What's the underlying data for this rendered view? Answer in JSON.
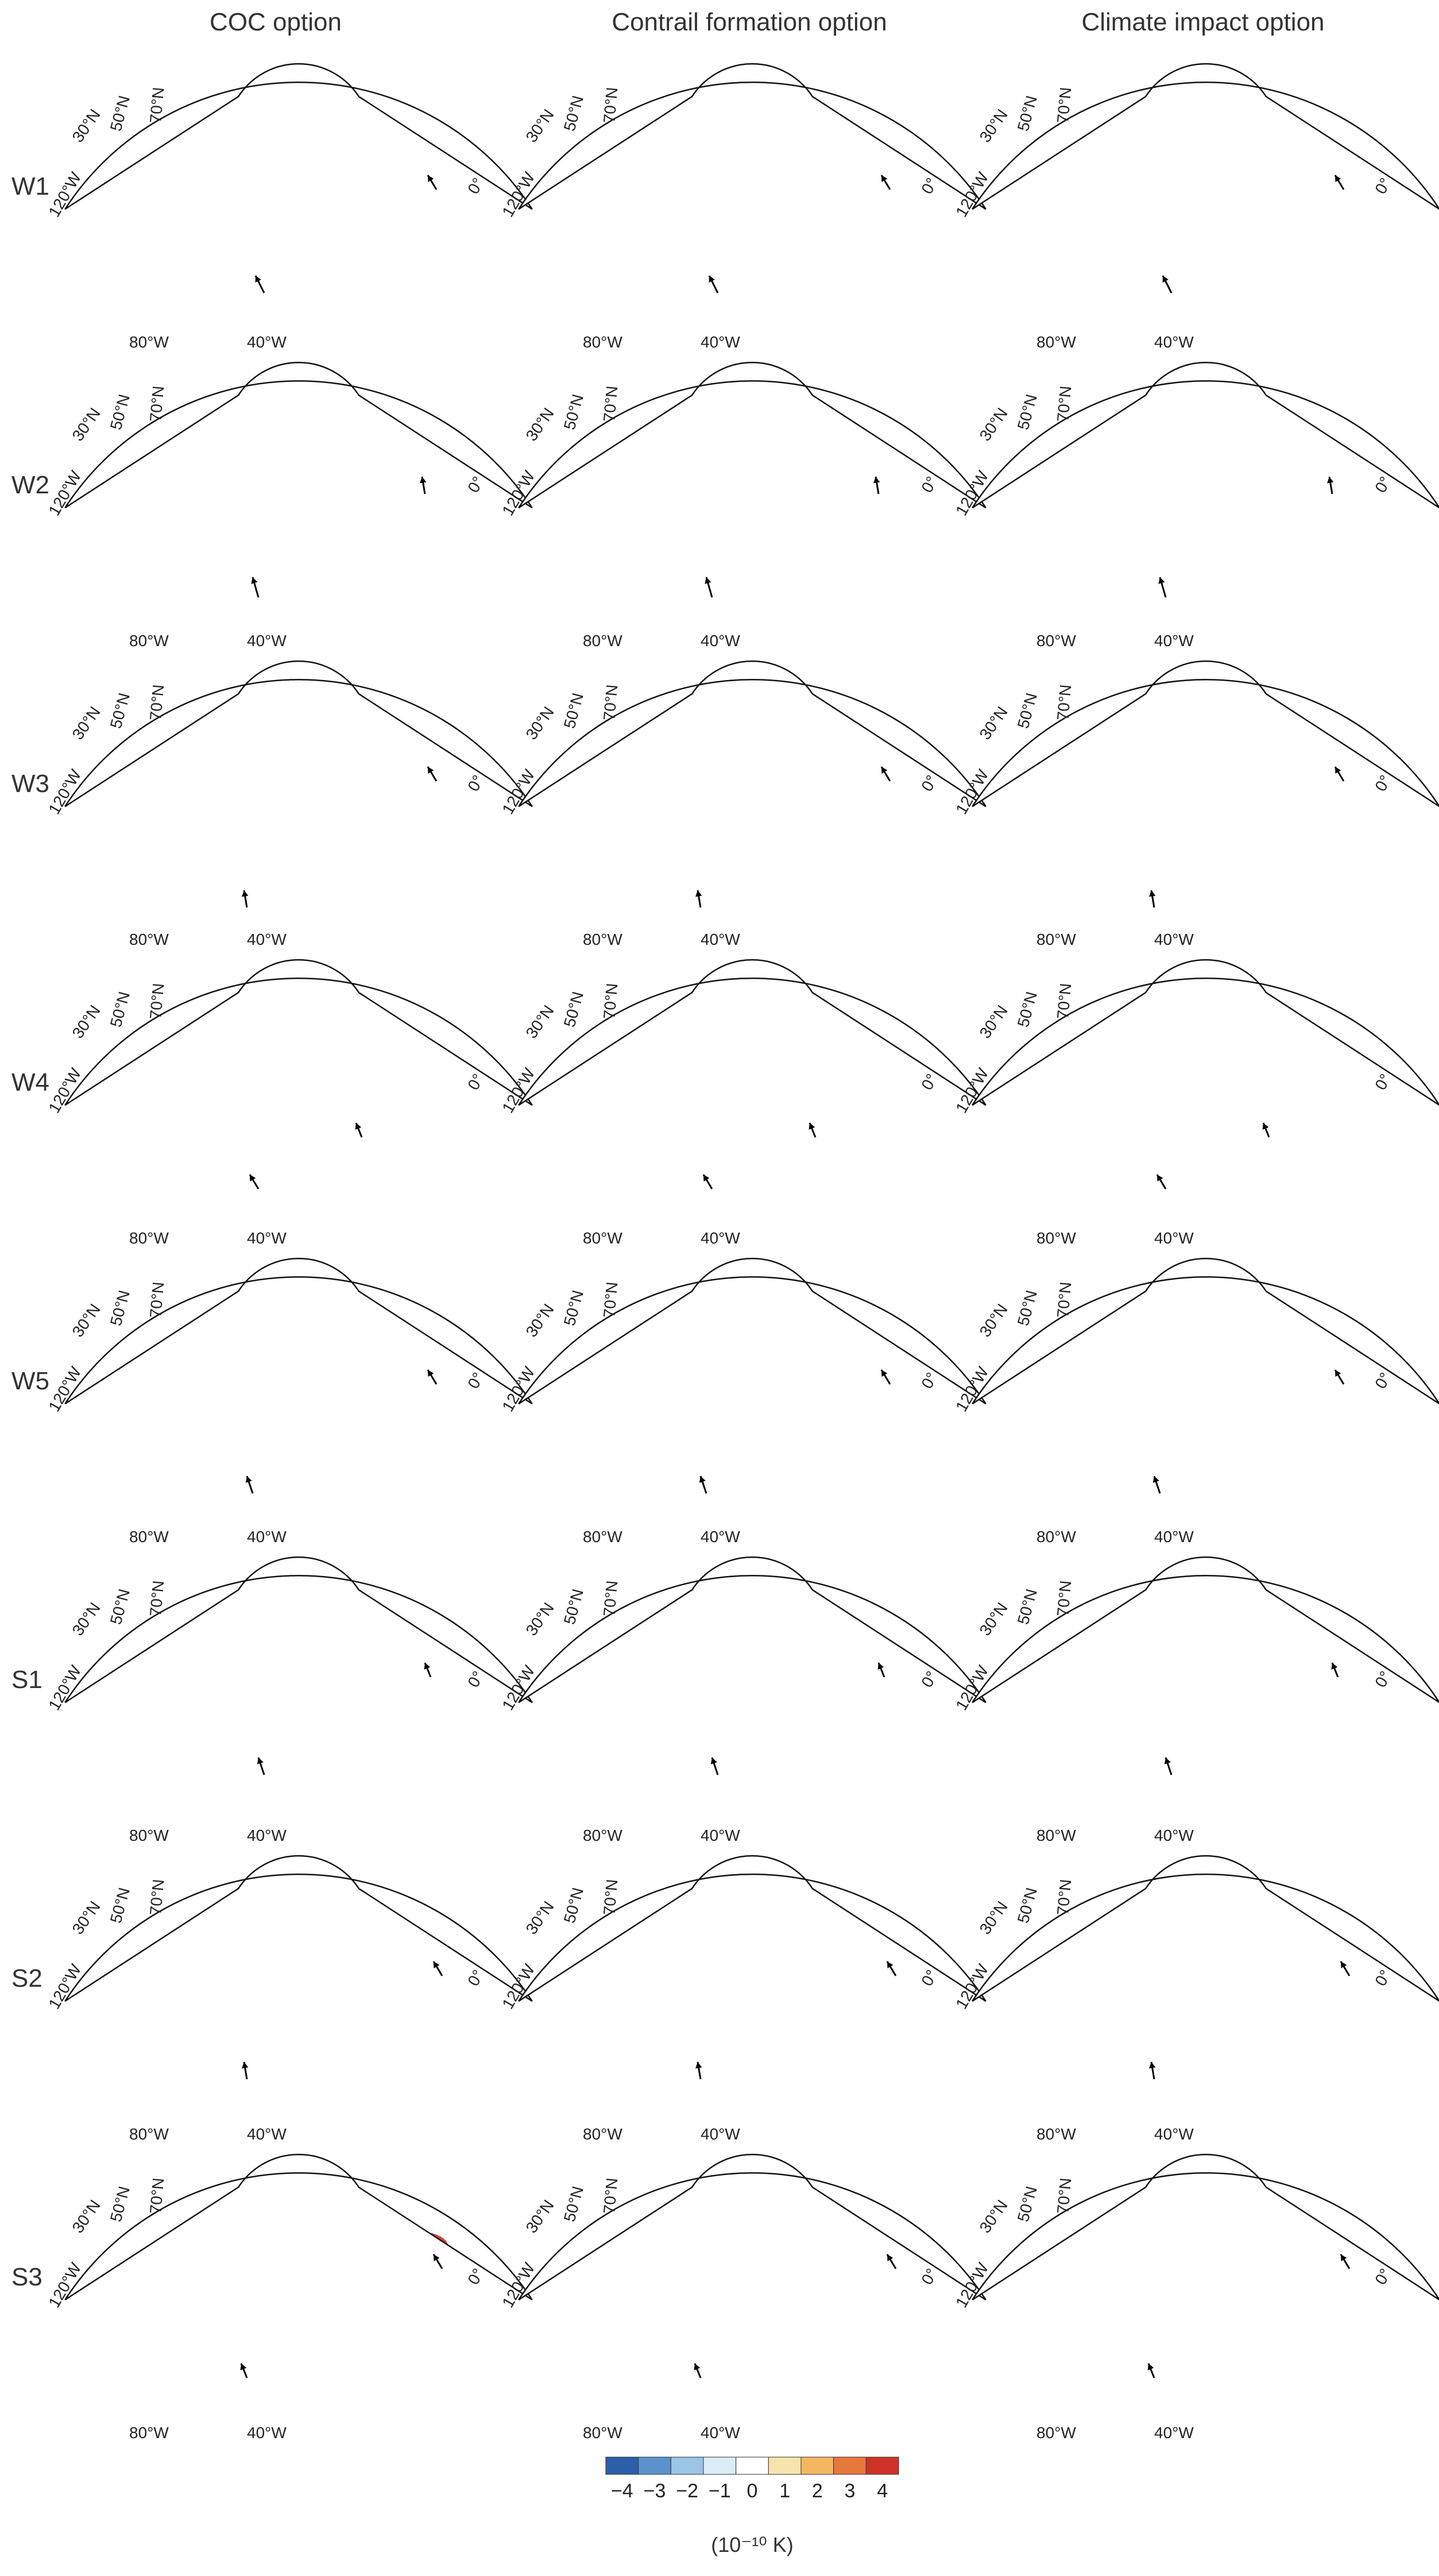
{
  "figure": {
    "columns": [
      "COC option",
      "Contrail formation option",
      "Climate impact option"
    ],
    "rows": [
      "W1",
      "W2",
      "W3",
      "W4",
      "W5",
      "S1",
      "S2",
      "S3"
    ],
    "geo_labels": {
      "lat": [
        "30°N",
        "50°N",
        "70°N"
      ],
      "lon": [
        "120°W",
        "80°W",
        "40°W",
        "0°"
      ]
    },
    "colorbar": {
      "ticks": [
        "−4",
        "−3",
        "−2",
        "−1",
        "0",
        "1",
        "2",
        "3",
        "4"
      ],
      "unit": "(10⁻¹⁰ K)",
      "colors": [
        "#2b5fa8",
        "#5b92cc",
        "#9cc4e4",
        "#dcecf6",
        "#ffffff",
        "#f7e4ad",
        "#f4b760",
        "#e8773c",
        "#cf3228"
      ]
    },
    "map_colors": {
      "base": "#f7e4ad",
      "warm_mid": "#f4b760",
      "warm_hi": "#e8773c",
      "warm_max": "#cf3228",
      "warm_dark": "#9c1c1c",
      "cool_lo": "#dcecf6",
      "cool_mid": "#5b92cc",
      "cool_hi": "#1f4f9a"
    }
  }
}
